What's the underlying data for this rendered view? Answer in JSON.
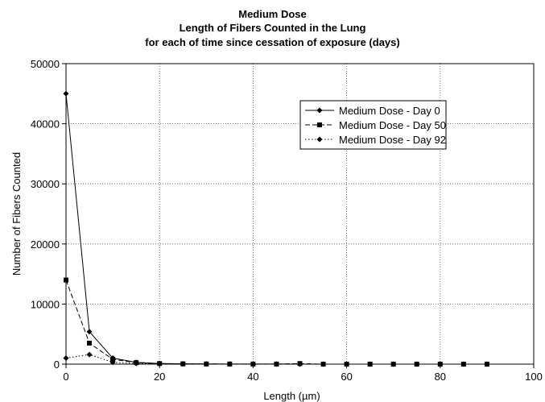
{
  "chart_data": {
    "type": "line",
    "title": [
      "Medium Dose",
      "Length of Fibers Counted in the Lung",
      "for each of time since cessation of exposure (days)"
    ],
    "xlabel": "Length (µm)",
    "ylabel": "Number of Fibers Counted",
    "xlim": [
      0,
      100
    ],
    "ylim": [
      0,
      50000
    ],
    "xticks": [
      0,
      20,
      40,
      60,
      80,
      100
    ],
    "yticks": [
      0,
      10000,
      20000,
      30000,
      40000,
      50000
    ],
    "grid": true,
    "legend_position": "top-right",
    "series": [
      {
        "name": "Medium Dose - Day 0",
        "line_style": "solid",
        "marker": "diamond",
        "x": [
          0,
          5,
          10,
          15,
          20,
          25,
          30,
          35,
          40,
          45,
          50,
          55,
          60,
          65,
          70,
          75,
          80,
          85,
          90
        ],
        "y": [
          45000,
          5400,
          1000,
          300,
          100,
          50,
          30,
          20,
          10,
          10,
          5,
          0,
          0,
          0,
          0,
          0,
          0,
          0,
          0
        ]
      },
      {
        "name": "Medium Dose - Day 50",
        "line_style": "dashed",
        "marker": "square",
        "x": [
          0,
          5,
          10,
          15,
          20,
          25,
          30,
          35,
          40,
          45,
          50,
          55,
          60,
          65,
          70,
          75,
          80,
          85,
          90
        ],
        "y": [
          14000,
          3500,
          800,
          250,
          100,
          50,
          30,
          20,
          10,
          10,
          100,
          0,
          0,
          0,
          0,
          0,
          0,
          0,
          0
        ]
      },
      {
        "name": "Medium Dose - Day 92",
        "line_style": "dotted",
        "marker": "diamond",
        "x": [
          0,
          5,
          10,
          15,
          20
        ],
        "y": [
          1000,
          1600,
          300,
          100,
          50
        ]
      }
    ]
  }
}
